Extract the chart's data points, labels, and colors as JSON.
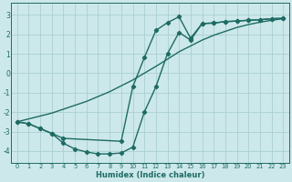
{
  "bg_color": "#cce8ea",
  "grid_color": "#aacfd2",
  "line_color": "#1e6b64",
  "marker_style": "D",
  "marker_size": 2.2,
  "linewidth": 1.0,
  "x_ticks": [
    0,
    1,
    2,
    3,
    4,
    5,
    6,
    7,
    8,
    9,
    10,
    11,
    12,
    13,
    14,
    15,
    16,
    17,
    18,
    19,
    20,
    21,
    22,
    23
  ],
  "xlabel": "Humidex (Indice chaleur)",
  "ylabel_ticks": [
    -4,
    -3,
    -2,
    -1,
    0,
    1,
    2,
    3
  ],
  "ylim": [
    -4.6,
    3.6
  ],
  "xlim": [
    -0.5,
    23.5
  ],
  "line1_x": [
    0,
    1,
    2,
    3,
    4,
    5,
    6,
    7,
    8,
    9,
    10,
    11,
    12,
    13,
    14,
    15,
    16,
    17,
    18,
    19,
    20,
    21,
    22,
    23
  ],
  "line1_y": [
    -2.5,
    -2.35,
    -2.2,
    -2.05,
    -1.85,
    -1.65,
    -1.45,
    -1.2,
    -0.95,
    -0.65,
    -0.35,
    0.0,
    0.35,
    0.72,
    1.1,
    1.4,
    1.7,
    1.95,
    2.15,
    2.35,
    2.5,
    2.62,
    2.72,
    2.8
  ],
  "line2_x": [
    0,
    1,
    2,
    3,
    4,
    9,
    10,
    11,
    12,
    13,
    14,
    15,
    16,
    17,
    18,
    19,
    20,
    21,
    22,
    23
  ],
  "line2_y": [
    -2.5,
    -2.6,
    -2.85,
    -3.1,
    -3.35,
    -3.5,
    -0.7,
    0.8,
    2.2,
    2.6,
    2.9,
    1.8,
    2.55,
    2.58,
    2.65,
    2.68,
    2.72,
    2.75,
    2.8,
    2.82
  ],
  "line3_x": [
    0,
    1,
    2,
    3,
    4,
    5,
    6,
    7,
    8,
    9,
    10,
    11,
    12,
    13,
    14,
    15,
    16,
    17,
    18,
    19,
    20,
    21,
    22,
    23
  ],
  "line3_y": [
    -2.5,
    -2.6,
    -2.85,
    -3.1,
    -3.6,
    -3.9,
    -4.05,
    -4.15,
    -4.15,
    -4.1,
    -3.8,
    -2.0,
    -0.7,
    1.0,
    2.1,
    1.7,
    2.55,
    2.58,
    2.65,
    2.68,
    2.72,
    2.75,
    2.8,
    2.82
  ]
}
